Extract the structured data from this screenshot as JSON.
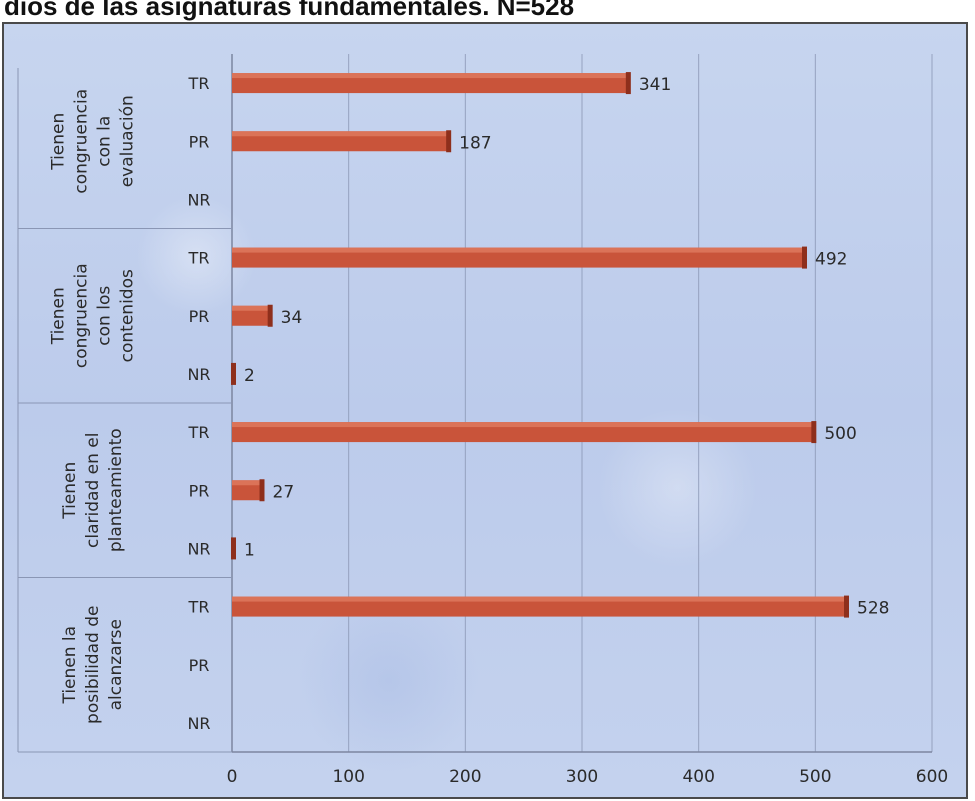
{
  "page_title": "dios de las asignaturas fundamentales. N=528",
  "chart_data": {
    "type": "bar",
    "orientation": "horizontal",
    "title": "",
    "xlabel": "",
    "ylabel": "",
    "xlim": [
      0,
      600
    ],
    "x_ticks": [
      "0",
      "100",
      "200",
      "300",
      "400",
      "500",
      "600"
    ],
    "grid": true,
    "legend": "none",
    "bar_color": "#c9543a",
    "groups": [
      {
        "label": "Tienen congruencia con la evaluación",
        "label_lines": [
          "Tienen",
          "congruencia",
          "con la",
          "evaluación"
        ],
        "bars": [
          {
            "category": "TR",
            "value": 341,
            "data_label": "341"
          },
          {
            "category": "PR",
            "value": 187,
            "data_label": "187"
          },
          {
            "category": "NR",
            "value": null,
            "data_label": ""
          }
        ]
      },
      {
        "label": "Tienen congruencia con los contenidos",
        "label_lines": [
          "Tienen",
          "congruencia",
          "con los",
          "contenidos"
        ],
        "bars": [
          {
            "category": "TR",
            "value": 492,
            "data_label": "492"
          },
          {
            "category": "PR",
            "value": 34,
            "data_label": "34"
          },
          {
            "category": "NR",
            "value": 2,
            "data_label": "2"
          }
        ]
      },
      {
        "label": "Tienen claridad en el planteamiento",
        "label_lines": [
          "Tienen",
          "claridad en el",
          "planteamiento"
        ],
        "bars": [
          {
            "category": "TR",
            "value": 500,
            "data_label": "500"
          },
          {
            "category": "PR",
            "value": 27,
            "data_label": "27"
          },
          {
            "category": "NR",
            "value": 1,
            "data_label": "1"
          }
        ]
      },
      {
        "label": "Tienen la posibilidad de alcanzarse",
        "label_lines": [
          "Tienen la",
          "posibilidad de",
          "alcanzarse"
        ],
        "bars": [
          {
            "category": "TR",
            "value": 528,
            "data_label": "528"
          },
          {
            "category": "PR",
            "value": null,
            "data_label": ""
          },
          {
            "category": "NR",
            "value": null,
            "data_label": ""
          }
        ]
      }
    ]
  }
}
